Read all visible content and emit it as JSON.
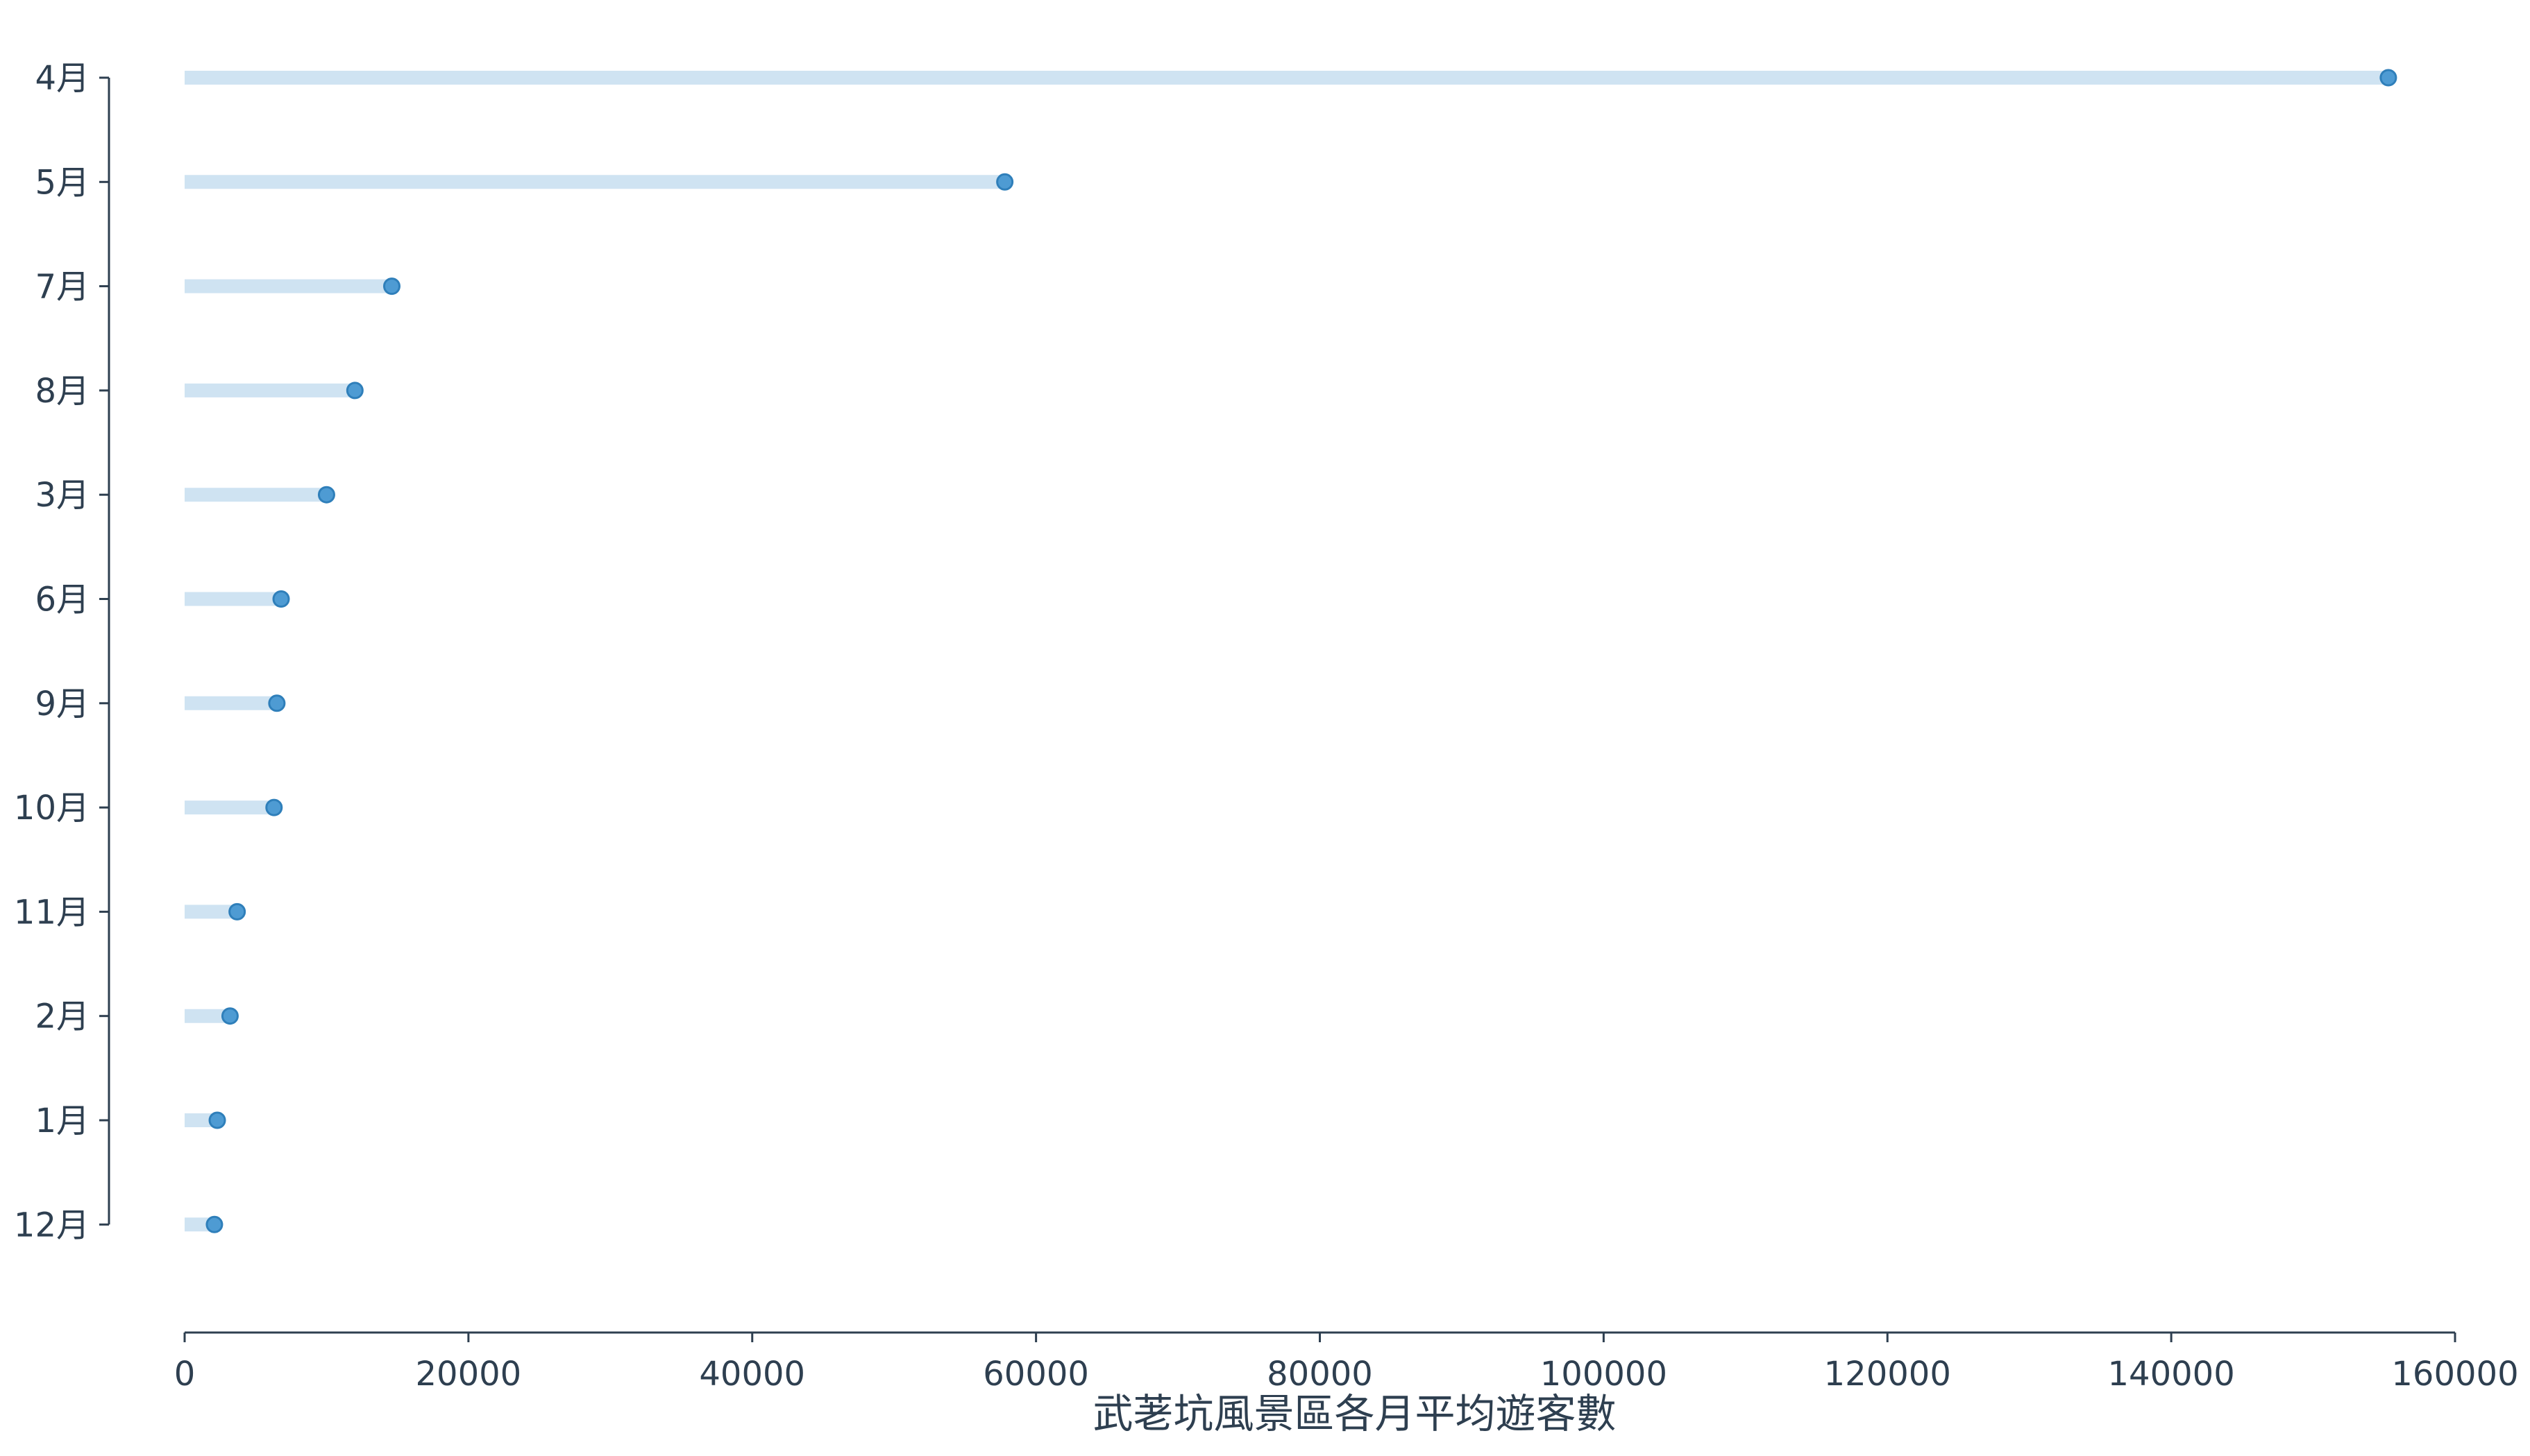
{
  "chart_data": {
    "type": "lollipop",
    "orientation": "horizontal",
    "categories": [
      "4月",
      "5月",
      "7月",
      "8月",
      "3月",
      "6月",
      "9月",
      "10月",
      "11月",
      "2月",
      "1月",
      "12月"
    ],
    "values": [
      155300,
      57800,
      14600,
      12000,
      10000,
      6800,
      6500,
      6300,
      3700,
      3200,
      2300,
      2100
    ],
    "xlabel": "武荖坑風景區各月平均遊客數",
    "ylabel": "",
    "xlim": [
      0,
      160000
    ],
    "x_ticks": [
      0,
      20000,
      40000,
      60000,
      80000,
      100000,
      120000,
      140000,
      160000
    ],
    "x_tick_labels": [
      "0",
      "20000",
      "40000",
      "60000",
      "80000",
      "100000",
      "120000",
      "140000",
      "160000"
    ],
    "grid": false,
    "legend": "none",
    "colors": {
      "stem": "#cfe3f2",
      "marker_fill": "#4e9bd3",
      "marker_stroke": "#2f7fba",
      "axis": "#2e3f50",
      "text": "#2e3f50"
    }
  }
}
